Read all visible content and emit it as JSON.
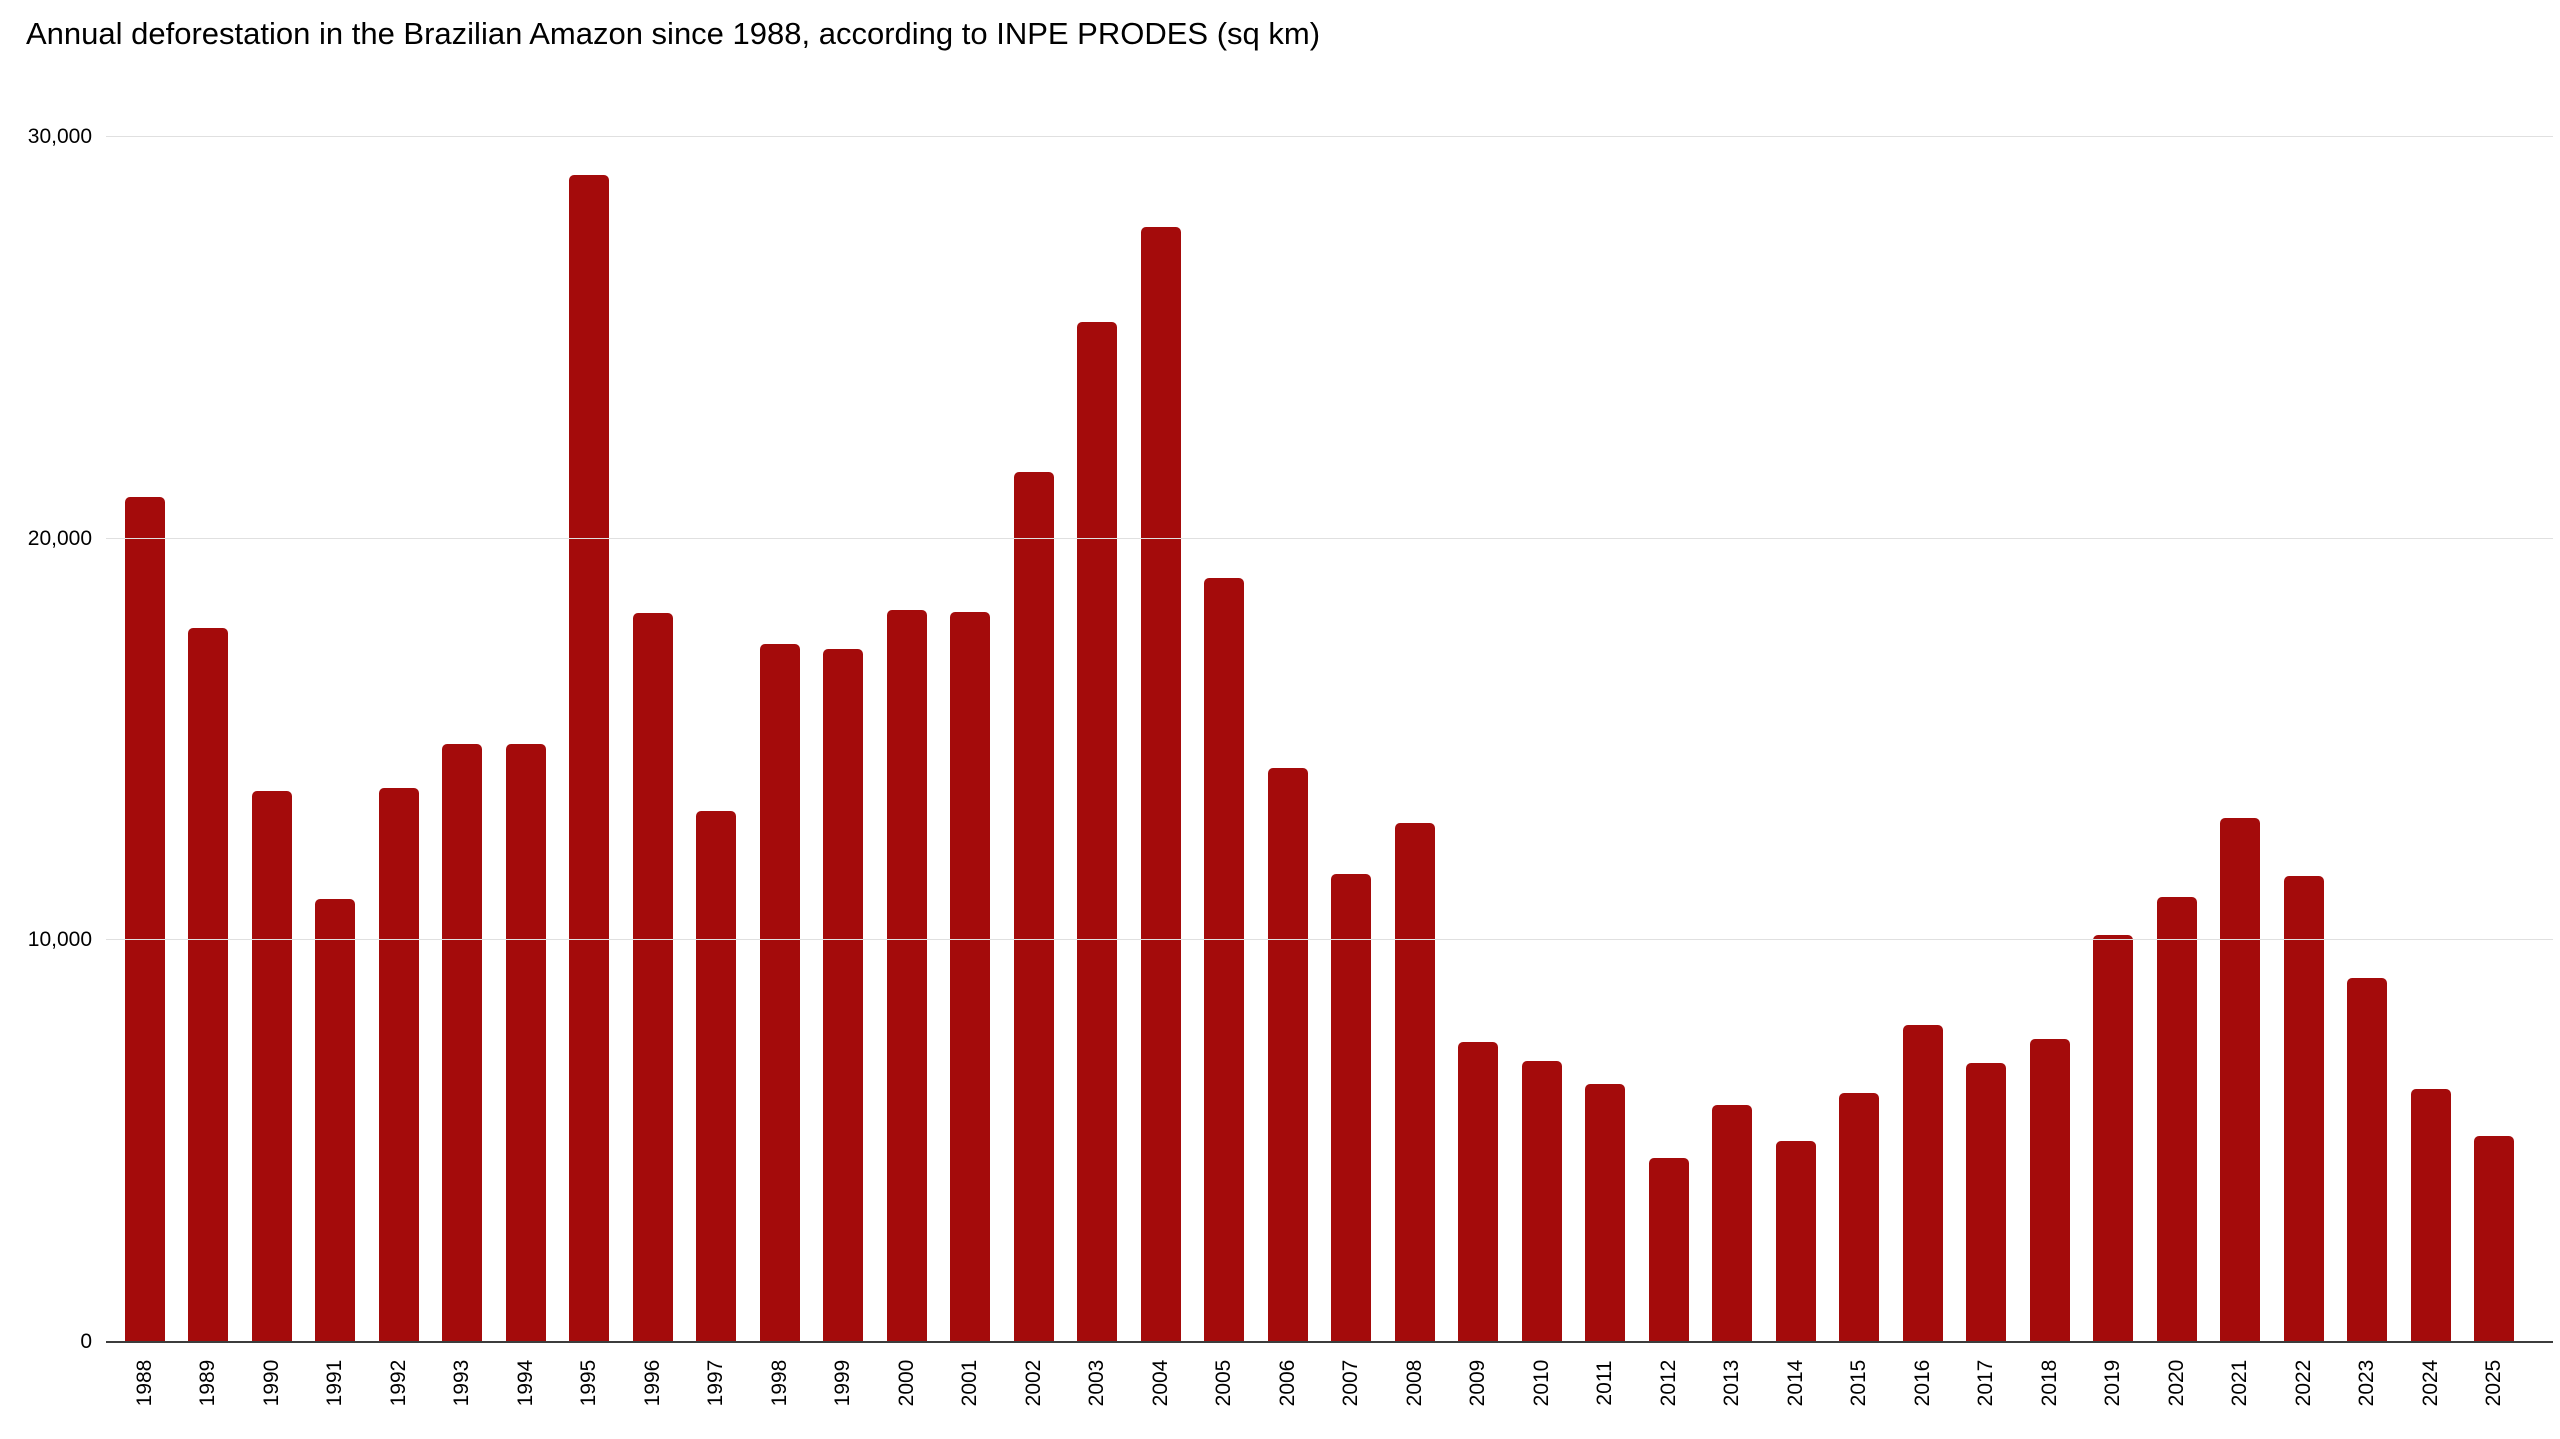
{
  "title": "Annual deforestation in the Brazilian Amazon since 1988, according to INPE PRODES (sq km)",
  "colors": {
    "bar": "#a40b0b",
    "gridline": "#e0e0e0",
    "axis_line": "#3c3c3c",
    "text": "#000000",
    "background": "#ffffff"
  },
  "chart_data": {
    "type": "bar",
    "title": "Annual deforestation in the Brazilian Amazon since 1988, according to INPE PRODES (sq km)",
    "xlabel": "",
    "ylabel": "",
    "ylim": [
      0,
      30000
    ],
    "yticks": [
      0,
      10000,
      20000,
      30000
    ],
    "ytick_labels": [
      "0",
      "10,000",
      "20,000",
      "30,000"
    ],
    "grid": true,
    "legend": false,
    "x_tick_rotation": -90,
    "categories": [
      "1988",
      "1989",
      "1990",
      "1991",
      "1992",
      "1993",
      "1994",
      "1995",
      "1996",
      "1997",
      "1998",
      "1999",
      "2000",
      "2001",
      "2002",
      "2003",
      "2004",
      "2005",
      "2006",
      "2007",
      "2008",
      "2009",
      "2010",
      "2011",
      "2012",
      "2013",
      "2014",
      "2015",
      "2016",
      "2017",
      "2018",
      "2019",
      "2020",
      "2021",
      "2022",
      "2023",
      "2024",
      "2025"
    ],
    "values": [
      21050,
      17770,
      13730,
      11030,
      13786,
      14896,
      14896,
      29059,
      18161,
      13227,
      17383,
      17259,
      18226,
      18165,
      21651,
      25396,
      27772,
      19014,
      14286,
      11651,
      12911,
      7464,
      7000,
      6418,
      4571,
      5891,
      5012,
      6207,
      7893,
      6947,
      7536,
      10129,
      11088,
      13038,
      11594,
      9064,
      6288,
      5120
    ]
  }
}
